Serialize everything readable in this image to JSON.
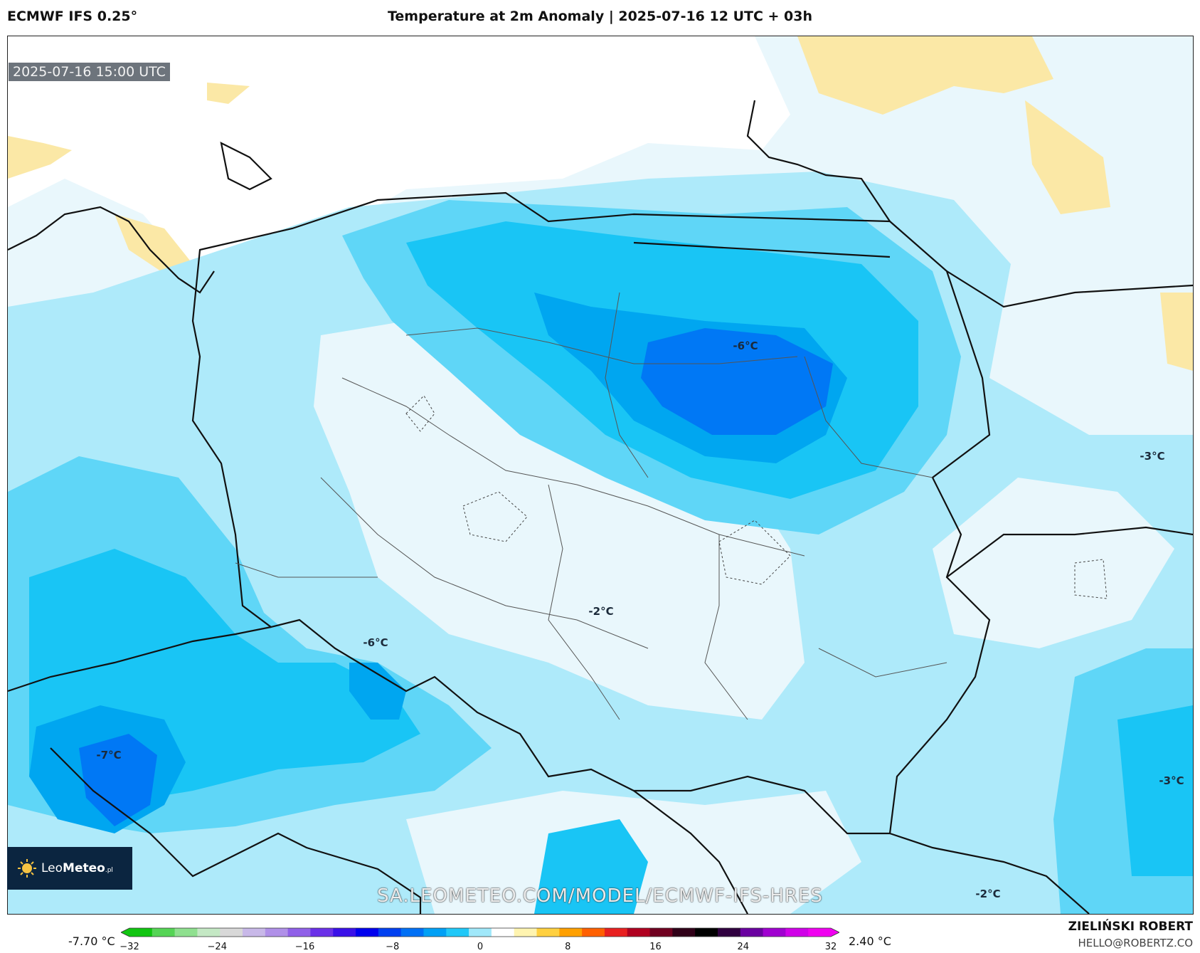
{
  "header": {
    "model": "ECMWF IFS 0.25°",
    "title": "Temperature at 2m Anomaly | 2025-07-16 12 UTC + 03h"
  },
  "map": {
    "valid_time": "2025-07-16 15:00 UTC",
    "labels": [
      "-6°C",
      "-3°C",
      "-2°C",
      "-6°C",
      "-7°C",
      "-3°C",
      "-2°C"
    ],
    "watermark": "SA.LEOMETEO.COM/MODEL/ECMWF-IFS-HRES",
    "logo": {
      "prefix": "Leo",
      "brand": "Meteo",
      "suffix": ".pl"
    },
    "colors": {
      "white": "#ffffff",
      "very_light_blue": "#e9f7fc",
      "light_blue": "#aeeafa",
      "blue_1": "#5fd6f7",
      "blue_2": "#19c5f5",
      "blue_3": "#00a6f0",
      "blue_4": "#0078f5",
      "warm": "#fbe8a6"
    }
  },
  "colorbar": {
    "min_label": "-7.70 °C",
    "max_label": "2.40 °C",
    "ticks": [
      "−32",
      "−24",
      "−16",
      "−8",
      "0",
      "8",
      "16",
      "24",
      "32"
    ],
    "colors": [
      "#11c511",
      "#55d455",
      "#8fe08f",
      "#c4e8c4",
      "#d8d8d8",
      "#c8b8e8",
      "#b090e8",
      "#9060e8",
      "#6a30e8",
      "#3a10e8",
      "#0000ee",
      "#0040f0",
      "#0070f5",
      "#00a0f5",
      "#20c8f8",
      "#a0e8fa",
      "#ffffff",
      "#fff4b0",
      "#ffd040",
      "#ffa000",
      "#ff6000",
      "#e82020",
      "#b00020",
      "#700020",
      "#300018",
      "#000000",
      "#300040",
      "#6a00a0",
      "#a000d0",
      "#d000e8",
      "#f000f0"
    ]
  },
  "credits": {
    "author": "ZIELIŃSKI ROBERT",
    "email": "HELLO@ROBERTZ.CO"
  }
}
